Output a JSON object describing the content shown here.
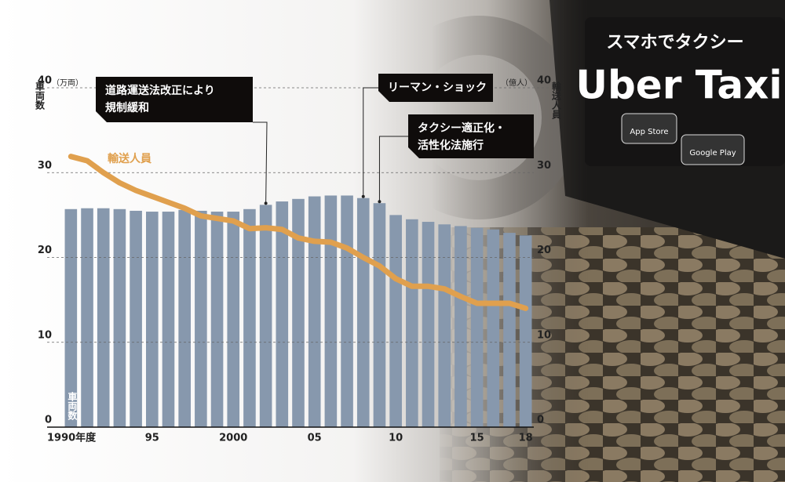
{
  "chart_data": {
    "type": "bar",
    "categories": [
      "1990年度",
      null,
      null,
      null,
      null,
      "95",
      null,
      null,
      null,
      null,
      "2000",
      null,
      null,
      null,
      null,
      "05",
      null,
      null,
      null,
      null,
      "10",
      null,
      null,
      null,
      null,
      "15",
      null,
      null,
      "18"
    ],
    "series": [
      {
        "name": "車両数",
        "color": "#8798ad",
        "values": [
          25.7,
          25.8,
          25.8,
          25.7,
          25.5,
          25.4,
          25.4,
          25.6,
          25.5,
          25.4,
          25.4,
          25.7,
          26.2,
          26.6,
          26.9,
          27.2,
          27.3,
          27.3,
          27.0,
          26.4,
          25.0,
          24.5,
          24.2,
          23.9,
          23.7,
          23.5,
          23.3,
          22.9,
          22.6
        ]
      },
      {
        "name": "輸送人員",
        "type": "line",
        "axis": "y2",
        "color": "#e0a04e",
        "values": [
          31.9,
          31.4,
          30.0,
          28.8,
          27.9,
          27.2,
          26.5,
          25.8,
          24.9,
          24.6,
          24.3,
          23.4,
          23.5,
          23.3,
          22.3,
          21.9,
          21.8,
          21.1,
          20.0,
          19.0,
          17.5,
          16.6,
          16.6,
          16.3,
          15.4,
          14.6,
          14.6,
          14.6,
          14.0
        ]
      }
    ],
    "ylim": [
      0,
      40
    ],
    "yticks": [
      0,
      10,
      20,
      30,
      40
    ],
    "y2lim": [
      0,
      40
    ],
    "y2ticks": [
      0,
      10,
      20,
      30,
      40
    ],
    "y_label": "車両数",
    "y_unit": "（万両）",
    "y2_label": "輸送人員",
    "y2_unit": "（億人）",
    "grid": true,
    "annotations": [
      {
        "lines": [
          "道路運送法改正により",
          "規制緩和"
        ]
      },
      {
        "lines": [
          "リーマン・ショック"
        ]
      },
      {
        "lines": [
          "タクシー適正化・",
          "活性化法施行"
        ]
      }
    ],
    "background_text": [
      "スマホでタクシー",
      "Uber Taxi",
      "App Store",
      "Google Play"
    ]
  }
}
